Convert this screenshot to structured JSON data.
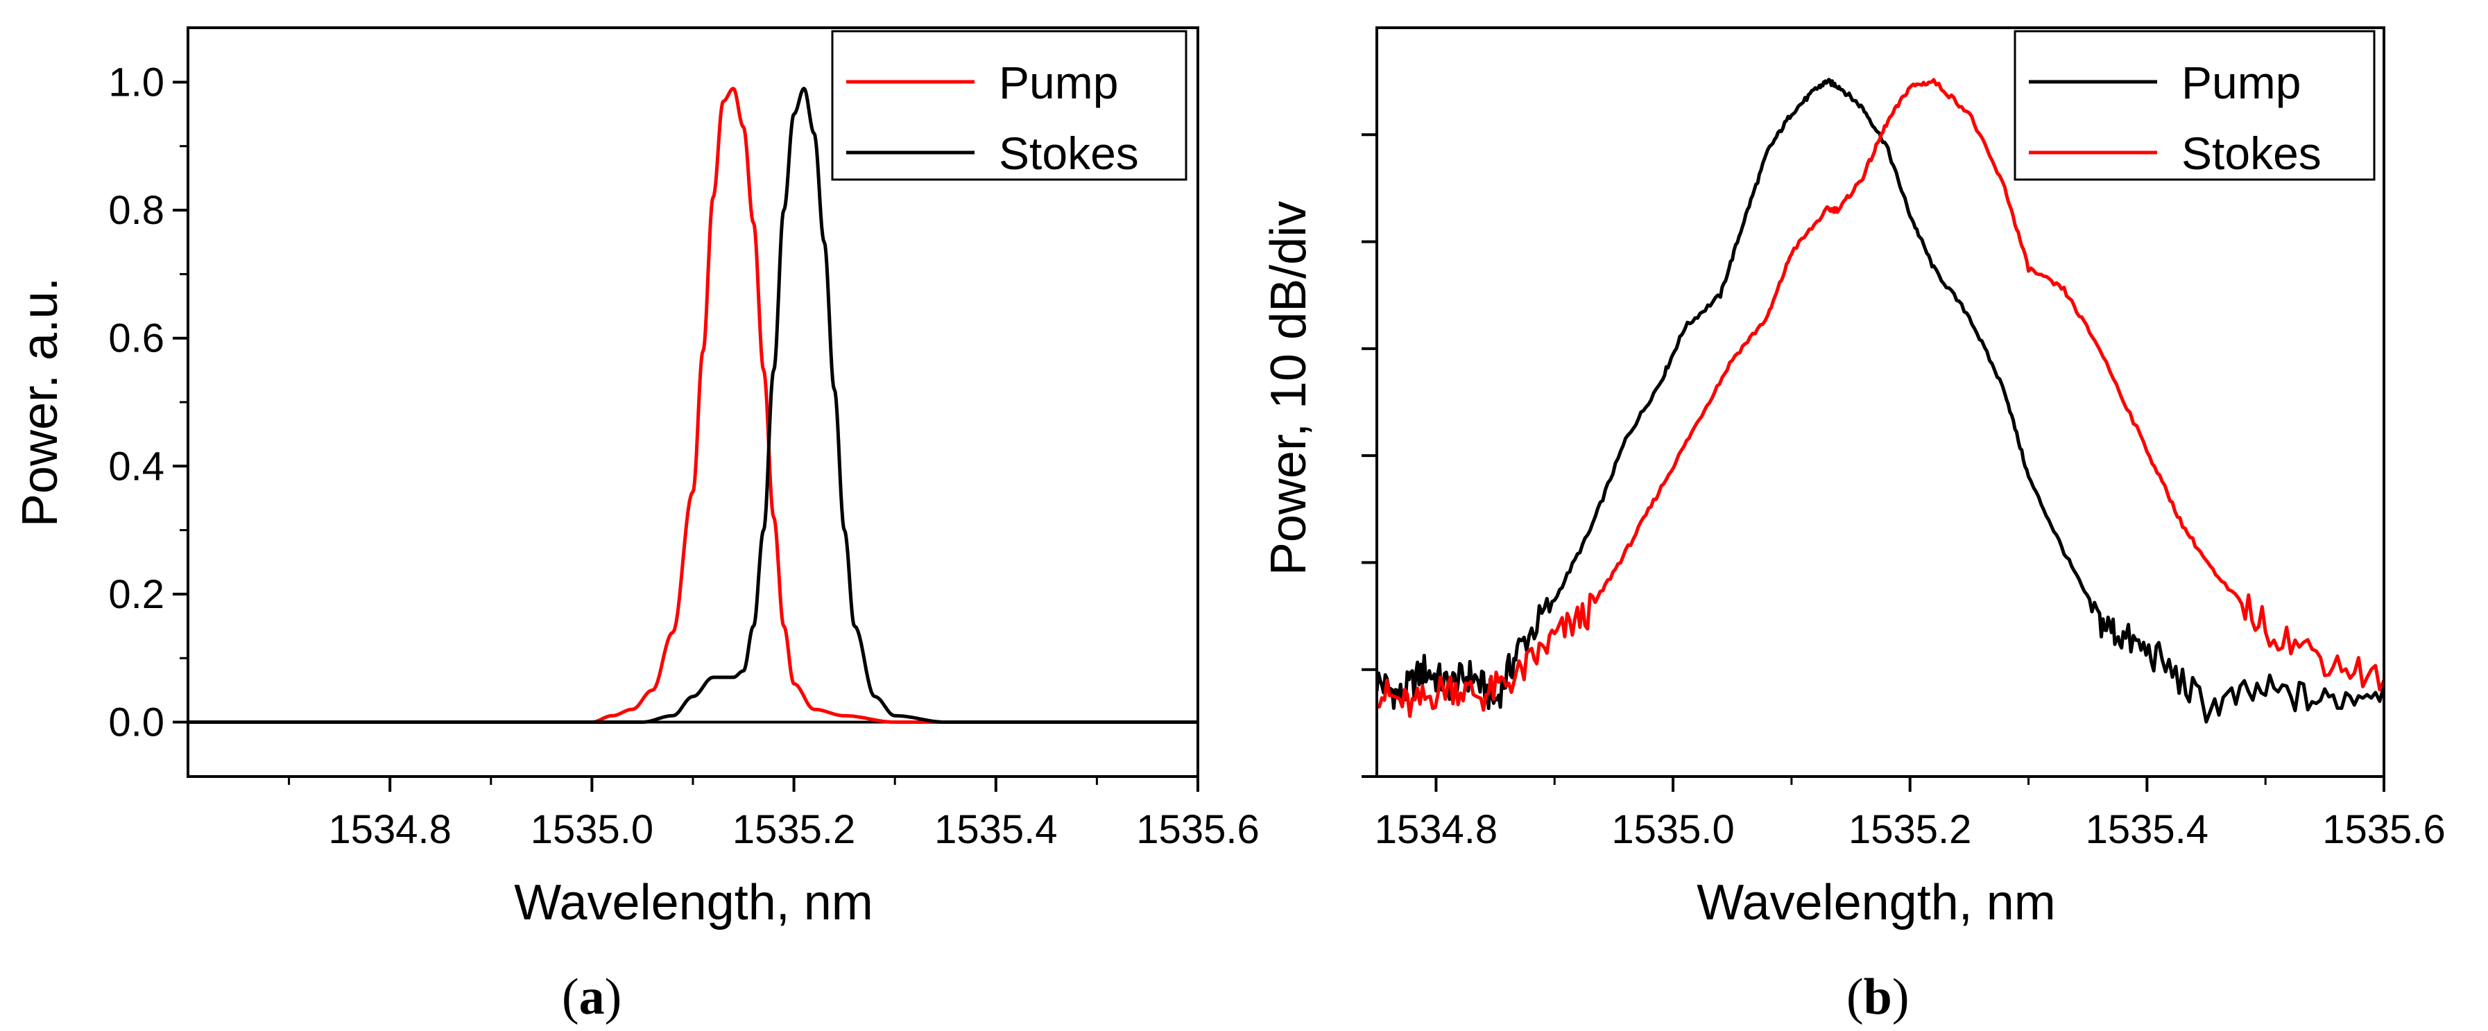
{
  "chart_data": [
    {
      "type": "line",
      "panel": "a",
      "caption_open": "(",
      "caption_letter": "a",
      "caption_close": ")",
      "xlabel": "Wavelength, nm",
      "ylabel": "Power. a.u.",
      "xlim": [
        1534.6,
        1535.6
      ],
      "ylim": [
        -0.085,
        1.085
      ],
      "xticks": [
        "1534.8",
        "1535.0",
        "1535.2",
        "1535.4",
        "1535.6"
      ],
      "xtick_values": [
        1534.8,
        1535.0,
        1535.2,
        1535.4,
        1535.6
      ],
      "yticks": [
        "0.0",
        "0.2",
        "0.4",
        "0.6",
        "0.8",
        "1.0"
      ],
      "ytick_values": [
        0.0,
        0.2,
        0.4,
        0.6,
        0.8,
        1.0
      ],
      "legend_position": "top-right",
      "series": [
        {
          "name": "Pump",
          "color": "#ff0000",
          "x": [
            1534.6,
            1535.0,
            1535.02,
            1535.04,
            1535.06,
            1535.08,
            1535.1,
            1535.11,
            1535.12,
            1535.13,
            1535.14,
            1535.15,
            1535.16,
            1535.17,
            1535.18,
            1535.19,
            1535.2,
            1535.22,
            1535.25,
            1535.3,
            1535.6
          ],
          "y": [
            0.0,
            0.0,
            0.01,
            0.02,
            0.05,
            0.14,
            0.36,
            0.58,
            0.82,
            0.97,
            0.99,
            0.93,
            0.78,
            0.55,
            0.32,
            0.15,
            0.06,
            0.02,
            0.01,
            0.0,
            0.0
          ]
        },
        {
          "name": "Stokes",
          "color": "#000000",
          "x": [
            1534.6,
            1535.05,
            1535.08,
            1535.1,
            1535.12,
            1535.14,
            1535.15,
            1535.16,
            1535.17,
            1535.18,
            1535.19,
            1535.2,
            1535.21,
            1535.22,
            1535.23,
            1535.24,
            1535.25,
            1535.26,
            1535.28,
            1535.3,
            1535.35,
            1535.6
          ],
          "y": [
            0.0,
            0.0,
            0.01,
            0.04,
            0.07,
            0.07,
            0.08,
            0.15,
            0.3,
            0.55,
            0.8,
            0.95,
            0.99,
            0.92,
            0.75,
            0.52,
            0.3,
            0.15,
            0.04,
            0.01,
            0.0,
            0.0
          ]
        }
      ]
    },
    {
      "type": "line",
      "panel": "b",
      "caption_open": "(",
      "caption_letter": "b",
      "caption_close": ")",
      "xlabel": "Wavelength, nm",
      "ylabel": "Power, 10 dB/div",
      "xlim": [
        1534.75,
        1535.6
      ],
      "ylim": [
        0,
        7
      ],
      "xticks": [
        "1534.8",
        "1535.0",
        "1535.2",
        "1535.4",
        "1535.6"
      ],
      "xtick_values": [
        1534.8,
        1535.0,
        1535.2,
        1535.4,
        1535.6
      ],
      "yticks": [],
      "ytick_values": [
        0,
        1,
        2,
        3,
        4,
        5,
        6
      ],
      "legend_position": "top-right",
      "series": [
        {
          "name": "Pump",
          "color": "#000000",
          "x": [
            1534.75,
            1534.77,
            1534.79,
            1534.81,
            1534.83,
            1534.85,
            1534.87,
            1534.9,
            1534.93,
            1534.96,
            1534.99,
            1535.01,
            1535.04,
            1535.06,
            1535.08,
            1535.1,
            1535.12,
            1535.13,
            1535.14,
            1535.16,
            1535.18,
            1535.2,
            1535.22,
            1535.25,
            1535.28,
            1535.3,
            1535.33,
            1535.36,
            1535.38,
            1535.41,
            1535.45,
            1535.5,
            1535.55,
            1535.6
          ],
          "y": [
            0.9,
            0.75,
            1.0,
            0.85,
            0.95,
            0.7,
            1.2,
            1.65,
            2.3,
            3.15,
            3.7,
            4.2,
            4.5,
            5.2,
            5.85,
            6.2,
            6.42,
            6.5,
            6.45,
            6.25,
            5.9,
            5.25,
            4.75,
            4.3,
            3.6,
            2.8,
            2.1,
            1.45,
            1.3,
            1.1,
            0.65,
            0.8,
            0.7,
            0.85
          ]
        },
        {
          "name": "Stokes",
          "color": "#ff0000",
          "x": [
            1534.75,
            1534.78,
            1534.81,
            1534.84,
            1534.87,
            1534.9,
            1534.93,
            1534.96,
            1534.99,
            1535.02,
            1535.05,
            1535.08,
            1535.1,
            1535.13,
            1535.14,
            1535.16,
            1535.18,
            1535.2,
            1535.22,
            1535.25,
            1535.28,
            1535.3,
            1535.33,
            1535.36,
            1535.4,
            1535.43,
            1535.46,
            1535.5,
            1535.55,
            1535.6
          ],
          "y": [
            0.8,
            0.65,
            0.85,
            0.75,
            0.95,
            1.3,
            1.55,
            2.1,
            2.7,
            3.3,
            3.9,
            4.3,
            4.9,
            5.3,
            5.3,
            5.6,
            6.1,
            6.45,
            6.5,
            6.2,
            5.5,
            4.75,
            4.55,
            4.0,
            3.05,
            2.35,
            1.85,
            1.4,
            1.1,
            0.9
          ]
        }
      ]
    }
  ]
}
